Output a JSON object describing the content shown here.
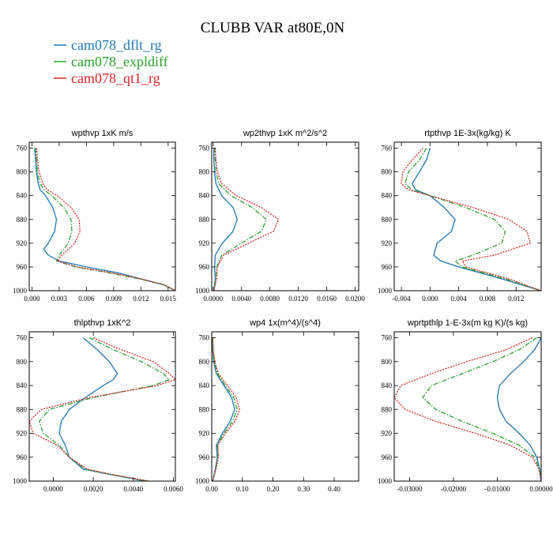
{
  "title": "CLUBB VAR at80E,0N",
  "colors": {
    "dflt": "#1f77b4",
    "expldiff": "#2ca02c",
    "qt1": "#d62728"
  },
  "legend": [
    {
      "label": "cam078_dflt_rg",
      "color": "#1f77b4",
      "dash": "solid"
    },
    {
      "label": "cam078_expldiff",
      "color": "#2ca02c",
      "dash": "dashdot"
    },
    {
      "label": "cam078_qt1_rg",
      "color": "#d62728",
      "dash": "dotted"
    }
  ],
  "chart_data": [
    {
      "type": "line",
      "title": "wpthvp 1xK m/s",
      "xlim": [
        -0.0003,
        0.0158
      ],
      "xticks": [
        "0.000",
        "0.003",
        "0.006",
        "0.009",
        "0.012",
        "0.015"
      ],
      "xtick_values": [
        0,
        0.003,
        0.006,
        0.009,
        0.012,
        0.015
      ],
      "ylim": [
        750,
        1000
      ],
      "yticks": [
        760,
        800,
        840,
        880,
        920,
        960,
        1000
      ],
      "y": [
        760,
        780,
        800,
        820,
        830,
        840,
        860,
        880,
        900,
        920,
        930,
        940,
        950,
        960,
        970,
        980,
        990,
        1000
      ],
      "series": [
        {
          "name": "cam078_dflt_rg",
          "x": [
            0.0003,
            0.0004,
            0.0005,
            0.0007,
            0.0009,
            0.0015,
            0.0023,
            0.0027,
            0.0025,
            0.0018,
            0.0013,
            0.0018,
            0.003,
            0.006,
            0.0095,
            0.012,
            0.0145,
            0.0158
          ]
        },
        {
          "name": "cam078_expldiff",
          "x": [
            0.0004,
            0.0005,
            0.0006,
            0.0009,
            0.0013,
            0.0022,
            0.0035,
            0.0043,
            0.0044,
            0.004,
            0.0035,
            0.003,
            0.0027,
            0.0048,
            0.0085,
            0.0118,
            0.0145,
            0.0158
          ]
        },
        {
          "name": "cam078_qt1_rg",
          "x": [
            0.0005,
            0.0006,
            0.0008,
            0.0012,
            0.0017,
            0.0028,
            0.0043,
            0.0052,
            0.0053,
            0.0047,
            0.004,
            0.0033,
            0.0028,
            0.005,
            0.0088,
            0.012,
            0.0146,
            0.0158
          ]
        }
      ]
    },
    {
      "type": "line",
      "title": "wp2thvp 1xK m^2/s^2",
      "xlim": [
        -0.0002,
        0.0205
      ],
      "xticks": [
        "0.0000",
        "0.0040",
        "0.0080",
        "0.0120",
        "0.0160",
        "0.0200"
      ],
      "xtick_values": [
        0,
        0.004,
        0.008,
        0.012,
        0.016,
        0.02
      ],
      "ylim": [
        750,
        1000
      ],
      "yticks": [
        760,
        800,
        840,
        880,
        920,
        960,
        1000
      ],
      "y": [
        760,
        780,
        800,
        820,
        840,
        860,
        880,
        900,
        920,
        940,
        960,
        980,
        1000
      ],
      "series": [
        {
          "name": "cam078_dflt_rg",
          "x": [
            0.0001,
            0.0001,
            0.0002,
            0.0004,
            0.0012,
            0.0028,
            0.0034,
            0.0028,
            0.0013,
            0.0003,
            0.0002,
            0.0003,
            0.0001
          ]
        },
        {
          "name": "cam078_expldiff",
          "x": [
            0.0002,
            0.0003,
            0.0004,
            0.0008,
            0.0025,
            0.0055,
            0.0075,
            0.0068,
            0.004,
            0.0012,
            0.0005,
            0.0004,
            0.0001
          ]
        },
        {
          "name": "cam078_qt1_rg",
          "x": [
            0.0003,
            0.0004,
            0.0006,
            0.0012,
            0.0033,
            0.0068,
            0.0092,
            0.0085,
            0.005,
            0.0015,
            0.0006,
            0.0005,
            0.0001
          ]
        }
      ]
    },
    {
      "type": "line",
      "title": "rtpthvp 1E-3x(kg/kg) K",
      "xlim": [
        -0.005,
        0.0155
      ],
      "xticks": [
        "-0.004",
        "0.000",
        "0.004",
        "0.008",
        "0.012"
      ],
      "xtick_values": [
        -0.004,
        0,
        0.004,
        0.008,
        0.012
      ],
      "ylim": [
        750,
        1000
      ],
      "yticks": [
        760,
        800,
        840,
        880,
        920,
        960,
        1000
      ],
      "y": [
        760,
        780,
        800,
        820,
        830,
        840,
        860,
        880,
        900,
        920,
        940,
        950,
        960,
        970,
        980,
        1000
      ],
      "series": [
        {
          "name": "cam078_dflt_rg",
          "x": [
            0.0,
            -0.0005,
            -0.0015,
            -0.0025,
            -0.002,
            0.0,
            0.002,
            0.0035,
            0.003,
            0.001,
            0.0005,
            0.0015,
            0.004,
            0.007,
            0.01,
            0.0155
          ]
        },
        {
          "name": "cam078_expldiff",
          "x": [
            -0.0005,
            -0.0015,
            -0.003,
            -0.0035,
            -0.0025,
            0.0,
            0.005,
            0.009,
            0.0105,
            0.01,
            0.006,
            0.0035,
            0.0045,
            0.0075,
            0.0105,
            0.0155
          ]
        },
        {
          "name": "cam078_qt1_rg",
          "x": [
            -0.001,
            -0.0025,
            -0.0038,
            -0.004,
            -0.003,
            0.0,
            0.006,
            0.011,
            0.0135,
            0.014,
            0.009,
            0.0045,
            0.005,
            0.008,
            0.011,
            0.0155
          ]
        }
      ]
    },
    {
      "type": "line",
      "title": "thlpthvp 1xK^2",
      "xlim": [
        -0.0012,
        0.0061
      ],
      "xticks": [
        "0.0000",
        "0.0020",
        "0.0040",
        "0.0060"
      ],
      "xtick_values": [
        0,
        0.002,
        0.004,
        0.006
      ],
      "ylim": [
        750,
        1000
      ],
      "yticks": [
        760,
        800,
        840,
        880,
        920,
        960,
        1000
      ],
      "y": [
        760,
        780,
        800,
        820,
        830,
        840,
        860,
        880,
        900,
        920,
        940,
        960,
        980,
        990,
        1000
      ],
      "series": [
        {
          "name": "cam078_dflt_rg",
          "x": [
            0.0015,
            0.0022,
            0.0028,
            0.0032,
            0.003,
            0.0025,
            0.0016,
            0.0008,
            0.0004,
            0.0003,
            0.0006,
            0.0008,
            0.0015,
            0.003,
            0.0046
          ]
        },
        {
          "name": "cam078_expldiff",
          "x": [
            0.0018,
            0.003,
            0.0044,
            0.0055,
            0.0058,
            0.005,
            0.002,
            -0.0002,
            -0.0007,
            -0.0005,
            0.0003,
            0.0008,
            0.0016,
            0.003,
            0.0047
          ]
        },
        {
          "name": "cam078_qt1_rg",
          "x": [
            0.002,
            0.0034,
            0.005,
            0.0058,
            0.0061,
            0.0052,
            0.0018,
            -0.0006,
            -0.0012,
            -0.001,
            0.0002,
            0.0008,
            0.0017,
            0.0031,
            0.0048
          ]
        }
      ]
    },
    {
      "type": "line",
      "title": "wp4 1x(m^4)/(s^4)",
      "xlim": [
        0.0,
        0.48
      ],
      "xticks": [
        "0.00",
        "0.10",
        "0.20",
        "0.30",
        "0.40"
      ],
      "xtick_values": [
        0,
        0.1,
        0.2,
        0.3,
        0.4
      ],
      "ylim": [
        750,
        1000
      ],
      "yticks": [
        760,
        800,
        840,
        880,
        920,
        960,
        1000
      ],
      "y": [
        760,
        780,
        800,
        820,
        840,
        860,
        880,
        900,
        920,
        940,
        960,
        980,
        1000
      ],
      "series": [
        {
          "name": "cam078_dflt_rg",
          "x": [
            0.002,
            0.003,
            0.006,
            0.015,
            0.04,
            0.065,
            0.075,
            0.06,
            0.035,
            0.015,
            0.018,
            0.012,
            0.003
          ]
        },
        {
          "name": "cam078_expldiff",
          "x": [
            0.003,
            0.004,
            0.008,
            0.018,
            0.045,
            0.072,
            0.083,
            0.068,
            0.04,
            0.018,
            0.02,
            0.013,
            0.003
          ]
        },
        {
          "name": "cam078_qt1_rg",
          "x": [
            0.004,
            0.005,
            0.01,
            0.022,
            0.052,
            0.08,
            0.091,
            0.075,
            0.045,
            0.02,
            0.022,
            0.014,
            0.003
          ]
        }
      ]
    },
    {
      "type": "line",
      "title": "wprtpthlp 1-E-3x(m kg K)/(s kg)",
      "xlim": [
        -0.0335,
        0.0
      ],
      "xticks": [
        "-0.03000",
        "-0.02000",
        "-0.01000",
        "0.00000"
      ],
      "xtick_values": [
        -0.03,
        -0.02,
        -0.01,
        0
      ],
      "ylim": [
        750,
        1000
      ],
      "yticks": [
        760,
        800,
        840,
        880,
        920,
        960,
        1000
      ],
      "y": [
        760,
        780,
        800,
        820,
        840,
        860,
        880,
        900,
        920,
        940,
        960,
        980,
        1000
      ],
      "series": [
        {
          "name": "cam078_dflt_rg",
          "x": [
            0.0,
            -0.0015,
            -0.004,
            -0.007,
            -0.0095,
            -0.01,
            -0.0095,
            -0.008,
            -0.005,
            -0.0025,
            -0.001,
            -0.0003,
            0.0
          ]
        },
        {
          "name": "cam078_expldiff",
          "x": [
            -0.001,
            -0.005,
            -0.011,
            -0.018,
            -0.025,
            -0.027,
            -0.024,
            -0.018,
            -0.011,
            -0.005,
            -0.0015,
            -0.0004,
            0.0
          ]
        },
        {
          "name": "cam078_qt1_rg",
          "x": [
            -0.002,
            -0.008,
            -0.017,
            -0.025,
            -0.032,
            -0.0335,
            -0.031,
            -0.024,
            -0.015,
            -0.007,
            -0.002,
            -0.0005,
            0.0
          ]
        }
      ]
    }
  ]
}
